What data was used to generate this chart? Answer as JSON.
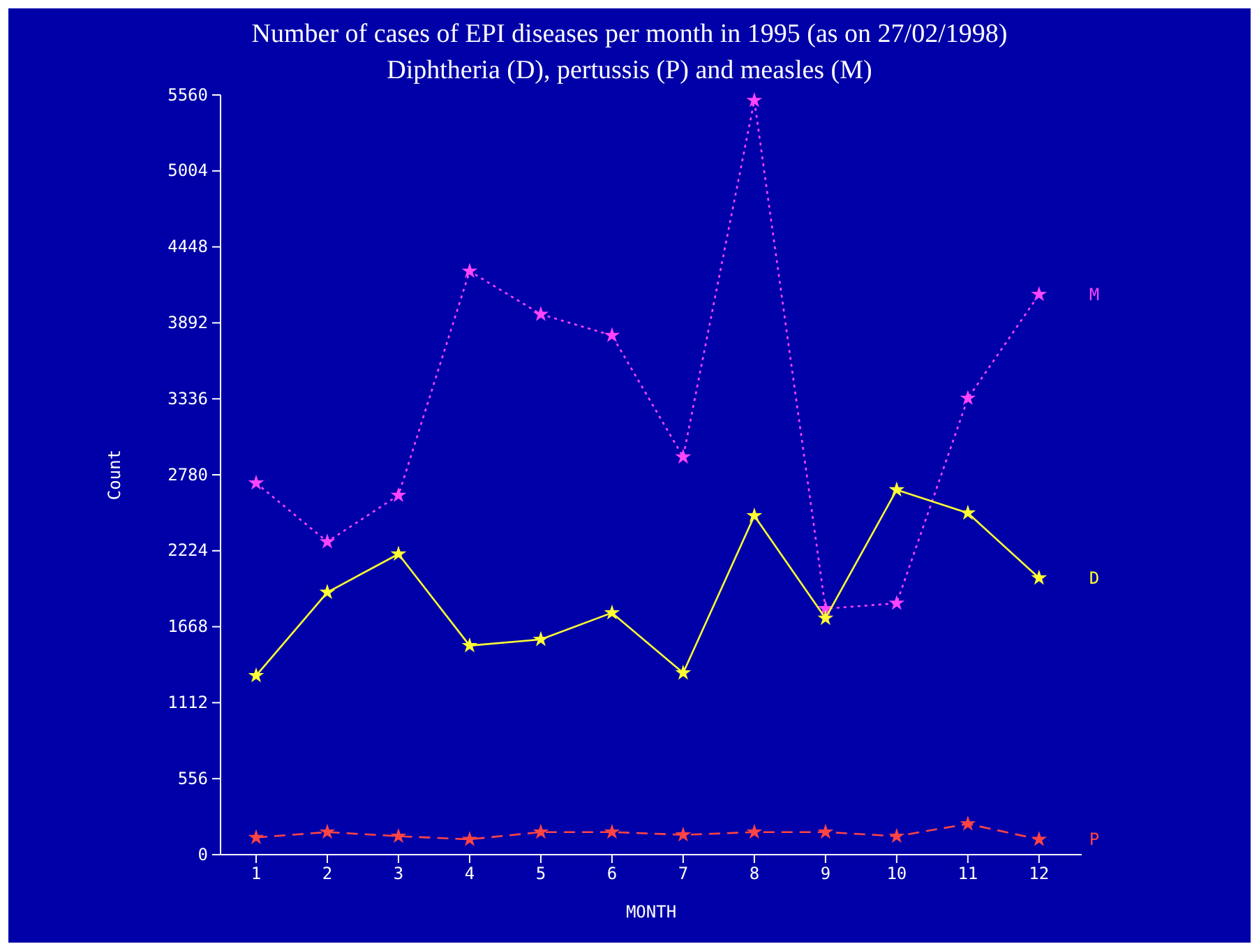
{
  "chart_data": {
    "type": "line",
    "title": "Number of cases of EPI diseases per month in 1995 (as on 27/02/1998)",
    "subtitle": "Diphtheria (D),  pertussis (P) and measles (M)",
    "xlabel": "MONTH",
    "ylabel": "Count",
    "x": [
      1,
      2,
      3,
      4,
      5,
      6,
      7,
      8,
      9,
      10,
      11,
      12
    ],
    "xlim": [
      0.5,
      12.6
    ],
    "xticks": [
      1,
      2,
      3,
      4,
      5,
      6,
      7,
      8,
      9,
      10,
      11,
      12
    ],
    "ylim": [
      0,
      5560
    ],
    "yticks": [
      0,
      556,
      1112,
      1668,
      2224,
      2780,
      3336,
      3892,
      4448,
      5004,
      5560
    ],
    "grid": false,
    "legend": false,
    "marker": "star",
    "series": [
      {
        "name": "M",
        "color": "#ff44ff",
        "line_style": "dotted",
        "values": [
          2720,
          2290,
          2630,
          4270,
          3955,
          3800,
          2910,
          5520,
          1800,
          1840,
          3340,
          4100
        ]
      },
      {
        "name": "D",
        "color": "#ffff33",
        "line_style": "solid",
        "values": [
          1310,
          1920,
          2200,
          1530,
          1575,
          1770,
          1330,
          2480,
          1730,
          2670,
          2500,
          2025
        ]
      },
      {
        "name": "P",
        "color": "#ff4444",
        "line_style": "dashed",
        "values": [
          125,
          165,
          135,
          112,
          165,
          165,
          145,
          165,
          165,
          135,
          225,
          112
        ]
      }
    ]
  }
}
